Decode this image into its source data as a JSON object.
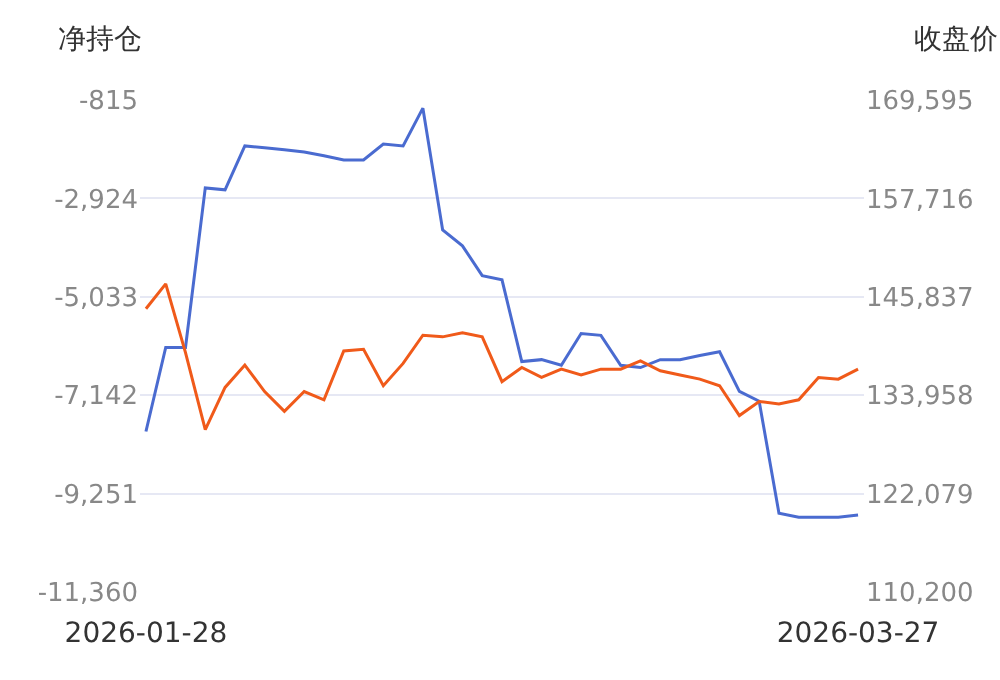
{
  "chart_data": {
    "type": "line",
    "ylabel": "净持仓",
    "y2label": "收盘价",
    "categories": [
      "2026-01-28",
      null,
      null,
      null,
      null,
      null,
      null,
      null,
      null,
      null,
      null,
      null,
      null,
      null,
      null,
      null,
      null,
      null,
      null,
      null,
      null,
      null,
      null,
      null,
      null,
      null,
      null,
      null,
      null,
      null,
      null,
      null,
      null,
      null,
      null,
      null,
      "2026-03-27"
    ],
    "series": [
      {
        "color": "#4a6bd0",
        "values": [
          -7920,
          -6120,
          -6120,
          -2700,
          -2740,
          -1800,
          -1840,
          -1880,
          -1930,
          -2010,
          -2100,
          -2100,
          -1760,
          -1800,
          -990,
          -3600,
          -3940,
          -4580,
          -4670,
          -6420,
          -6380,
          -6500,
          -5820,
          -5860,
          -6500,
          -6550,
          -6380,
          -6380,
          -6290,
          -6210,
          -7060,
          -7270,
          -9670,
          -9760,
          -9760,
          -9760,
          -9710
        ]
      },
      {
        "color": "#f05a1a",
        "axis": "y2",
        "values": [
          144400,
          147400,
          139100,
          129800,
          134900,
          137600,
          134400,
          132000,
          134400,
          133400,
          139300,
          139500,
          135100,
          137800,
          141200,
          141000,
          141500,
          141000,
          135600,
          137300,
          136100,
          137100,
          136400,
          137100,
          137100,
          138100,
          136900,
          136400,
          135900,
          135100,
          131500,
          133200,
          132900,
          133400,
          136100,
          135900,
          137100
        ]
      }
    ],
    "ylim": [
      -11360,
      -815
    ],
    "yticks": [
      {
        "value": -815,
        "label": "-815"
      },
      {
        "value": -2924,
        "label": "-2,924"
      },
      {
        "value": -5033,
        "label": "-5,033"
      },
      {
        "value": -7142,
        "label": "-7,142"
      },
      {
        "value": -9251,
        "label": "-9,251"
      },
      {
        "value": -11360,
        "label": "-11,360"
      }
    ],
    "y2lim": [
      110200,
      169595
    ],
    "y2ticks": [
      {
        "value": 169595,
        "label": "169,595"
      },
      {
        "value": 157716,
        "label": "157,716"
      },
      {
        "value": 145837,
        "label": "145,837"
      },
      {
        "value": 133958,
        "label": "133,958"
      },
      {
        "value": 122079,
        "label": "122,079"
      },
      {
        "value": 110200,
        "label": "110,200"
      }
    ],
    "grid": "y",
    "marker": "none",
    "line_style": "solid"
  }
}
